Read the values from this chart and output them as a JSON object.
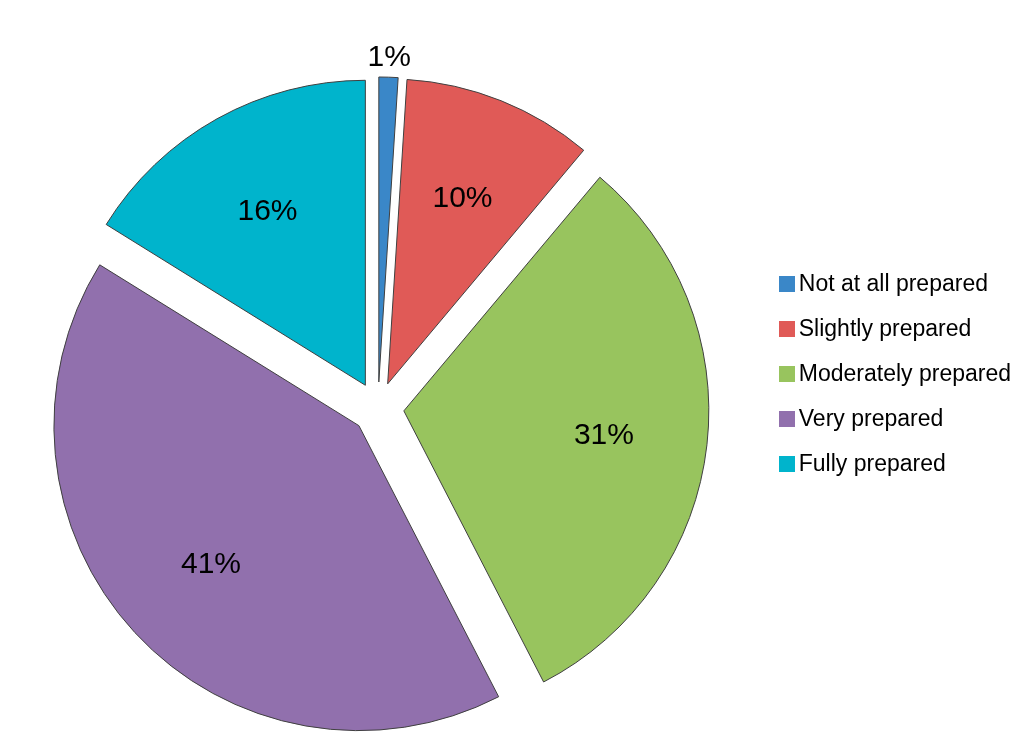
{
  "chart_data": {
    "type": "pie",
    "categories": [
      "Not at all prepared",
      "Slightly prepared",
      "Moderately prepared",
      "Very prepared",
      "Fully prepared"
    ],
    "values": [
      1,
      10,
      31,
      41,
      16
    ],
    "colors": [
      "#3a87c8",
      "#e05a57",
      "#98c45e",
      "#9170ad",
      "#00b4cc"
    ],
    "value_labels": [
      "1%",
      "10%",
      "31%",
      "41%",
      "16%"
    ],
    "legend": "right"
  }
}
